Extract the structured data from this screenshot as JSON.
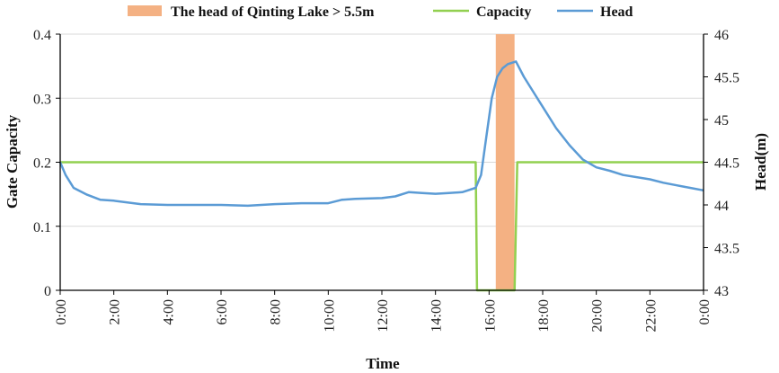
{
  "chart_data": {
    "type": "line",
    "xlabel": "Time",
    "ylabel_left": "Gate Capacity",
    "ylabel_right": "Head(m)",
    "x_ticks": [
      "0:00",
      "2:00",
      "4:00",
      "6:00",
      "8:00",
      "10:00",
      "12:00",
      "14:00",
      "16:00",
      "18:00",
      "20:00",
      "22:00",
      "0:00"
    ],
    "x_range_hours": [
      0,
      24
    ],
    "y_left": {
      "range": [
        0,
        0.4
      ],
      "ticks": [
        "0",
        "0.1",
        "0.2",
        "0.3",
        "0.4"
      ]
    },
    "y_right": {
      "range": [
        43,
        46
      ],
      "ticks": [
        "43",
        "43.5",
        "44",
        "44.5",
        "45",
        "45.5",
        "46"
      ]
    },
    "grid": "horizontal",
    "legend_position": "top",
    "legend": {
      "highlight": "The head of Qinting Lake > 5.5m",
      "capacity": "Capacity",
      "head": "Head"
    },
    "colors": {
      "highlight": "#F4B183",
      "capacity": "#92D050",
      "head": "#5B9BD5",
      "grid": "#D9D9D9"
    },
    "highlight_band_hours": [
      16.25,
      16.95
    ],
    "series": [
      {
        "name": "Capacity",
        "axis": "left",
        "points": [
          [
            0,
            0.2
          ],
          [
            15.5,
            0.2
          ],
          [
            15.55,
            0
          ],
          [
            16.95,
            0
          ],
          [
            17.05,
            0.2
          ],
          [
            24,
            0.2
          ]
        ]
      },
      {
        "name": "Head",
        "axis": "right",
        "points": [
          [
            0,
            44.5
          ],
          [
            0.2,
            44.35
          ],
          [
            0.5,
            44.2
          ],
          [
            1,
            44.12
          ],
          [
            1.5,
            44.06
          ],
          [
            2,
            44.05
          ],
          [
            3,
            44.01
          ],
          [
            4,
            44.0
          ],
          [
            5,
            44.0
          ],
          [
            6,
            44.0
          ],
          [
            7,
            43.99
          ],
          [
            8,
            44.01
          ],
          [
            9,
            44.02
          ],
          [
            10,
            44.02
          ],
          [
            10.5,
            44.06
          ],
          [
            11,
            44.07
          ],
          [
            12,
            44.08
          ],
          [
            12.5,
            44.1
          ],
          [
            13,
            44.15
          ],
          [
            13.5,
            44.14
          ],
          [
            14,
            44.13
          ],
          [
            14.5,
            44.14
          ],
          [
            15,
            44.15
          ],
          [
            15.5,
            44.2
          ],
          [
            15.7,
            44.35
          ],
          [
            15.9,
            44.8
          ],
          [
            16.1,
            45.25
          ],
          [
            16.3,
            45.5
          ],
          [
            16.5,
            45.6
          ],
          [
            16.7,
            45.65
          ],
          [
            17,
            45.68
          ],
          [
            17.3,
            45.5
          ],
          [
            17.7,
            45.3
          ],
          [
            18,
            45.15
          ],
          [
            18.5,
            44.9
          ],
          [
            19,
            44.7
          ],
          [
            19.5,
            44.53
          ],
          [
            20,
            44.44
          ],
          [
            20.5,
            44.4
          ],
          [
            21,
            44.35
          ],
          [
            22,
            44.3
          ],
          [
            22.5,
            44.26
          ],
          [
            23,
            44.23
          ],
          [
            23.5,
            44.2
          ],
          [
            24,
            44.17
          ]
        ]
      }
    ]
  }
}
